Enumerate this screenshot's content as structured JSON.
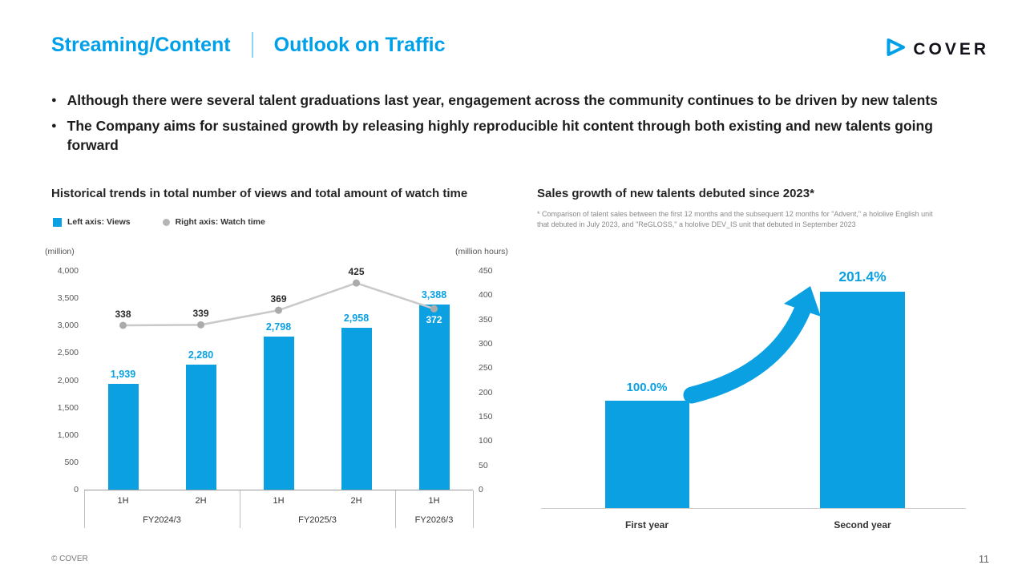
{
  "header": {
    "title_left": "Streaming/Content",
    "title_right": "Outlook on Traffic",
    "logo_text": "COVER"
  },
  "bullets": [
    "Although there were several talent graduations last year, engagement across the community continues to be driven by new talents",
    "The Company aims for sustained growth by releasing highly reproducible hit content through both existing and new talents going forward"
  ],
  "colors": {
    "accent_blue": "#00A0E9",
    "bar_blue": "#0AA0E2",
    "line_gray": "#C9C9C9",
    "marker_gray": "#ABABAB"
  },
  "chart_data": [
    {
      "type": "bar",
      "title": "Historical trends in total number of views and total amount of watch time",
      "categories": [
        "1H",
        "2H",
        "1H",
        "2H",
        "1H"
      ],
      "group_labels": [
        {
          "label": "FY2024/3",
          "span": 2
        },
        {
          "label": "FY2025/3",
          "span": 2
        },
        {
          "label": "FY2026/3",
          "span": 1
        }
      ],
      "series": [
        {
          "name": "Left axis: Views",
          "type": "bar",
          "axis": "left",
          "values": [
            1939,
            2280,
            2798,
            2958,
            3388
          ]
        },
        {
          "name": "Right axis: Watch time",
          "type": "line",
          "axis": "right",
          "values": [
            338,
            339,
            369,
            425,
            372
          ]
        }
      ],
      "left_axis": {
        "unit": "(million)",
        "min": 0,
        "max": 4000,
        "step": 500
      },
      "right_axis": {
        "unit": "(million hours)",
        "min": 0,
        "max": 450,
        "step": 50
      },
      "legend_position": "top-left",
      "grid": false
    },
    {
      "type": "bar",
      "title": "Sales growth of new talents debuted since 2023*",
      "footnote": "* Comparison of talent sales between the first 12 months and the subsequent 12 months for \"Advent,\" a hololive English unit that debuted in July 2023, and \"ReGLOSS,\" a hololive DEV_IS unit that debuted in September 2023",
      "categories": [
        "First year",
        "Second year"
      ],
      "values": [
        100.0,
        201.4
      ],
      "labels": [
        "100.0%",
        "201.4%"
      ],
      "ylim": [
        0,
        220
      ],
      "grid": false,
      "annotation": "curved growth arrow pointing up-right between the two bars"
    }
  ],
  "footer": {
    "copyright": "© COVER",
    "page_number": "11"
  }
}
